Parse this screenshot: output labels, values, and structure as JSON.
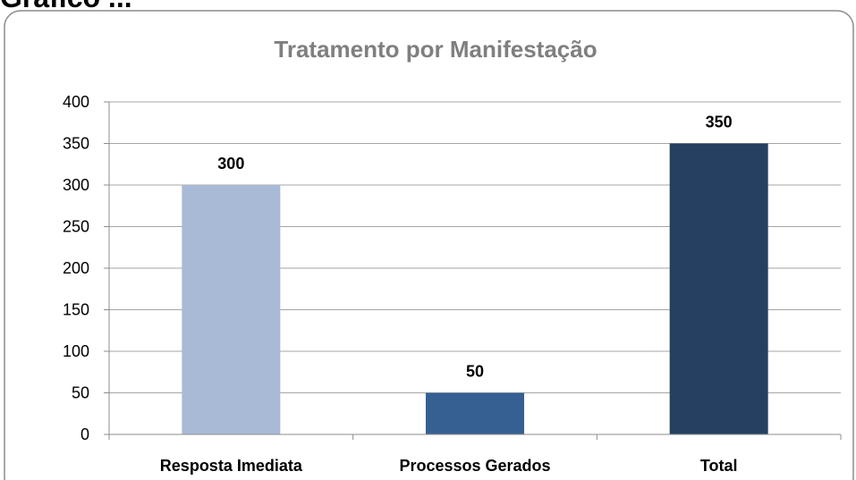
{
  "heading": "Gráfico ...",
  "chart_data": {
    "type": "bar",
    "title": "Tratamento por Manifestação",
    "categories": [
      "Resposta Imediata",
      "Processos Gerados",
      "Total"
    ],
    "values": [
      300,
      50,
      350
    ],
    "colors": [
      "#a9bad6",
      "#366092",
      "#254061"
    ],
    "ylim": [
      0,
      400
    ],
    "yticks": [
      0,
      50,
      100,
      150,
      200,
      250,
      300,
      350,
      400
    ],
    "grid": true
  }
}
